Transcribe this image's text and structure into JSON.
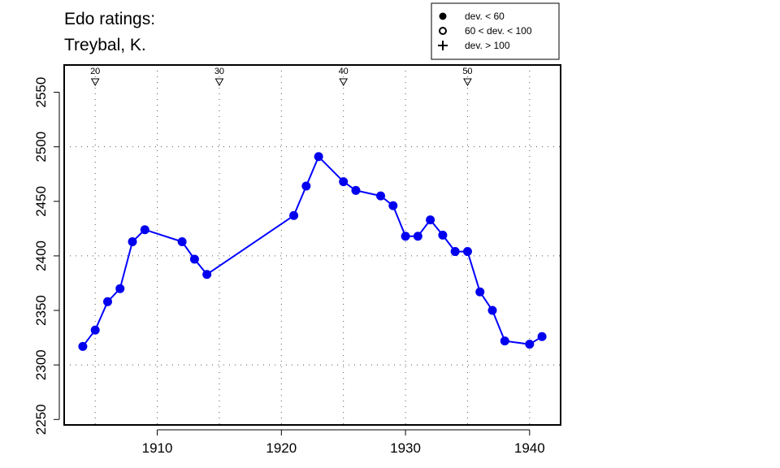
{
  "chart_data": {
    "type": "line",
    "title_lines": [
      "Edo ratings:",
      "Treybal, K."
    ],
    "xlabel": "",
    "ylabel": "",
    "xlim": [
      1902.5,
      1942.5
    ],
    "ylim": [
      2245,
      2575
    ],
    "x_ticks": [
      1910,
      1920,
      1930,
      1940
    ],
    "y_ticks": [
      2250,
      2300,
      2350,
      2400,
      2450,
      2500,
      2550
    ],
    "x_grid": [
      1905,
      1910,
      1915,
      1920,
      1925,
      1930,
      1935,
      1940
    ],
    "y_grid": [
      2300,
      2400,
      2500
    ],
    "grid": true,
    "age_markers": [
      {
        "label": "20",
        "x": 1905
      },
      {
        "label": "30",
        "x": 1915
      },
      {
        "label": "40",
        "x": 1925
      },
      {
        "label": "50",
        "x": 1935
      }
    ],
    "legend": {
      "position": "top-right",
      "entries": [
        {
          "symbol": "filled-circle",
          "label": "dev. < 60"
        },
        {
          "symbol": "open-circle",
          "label": "60 < dev. < 100"
        },
        {
          "symbol": "plus",
          "label": "dev. > 100"
        }
      ]
    },
    "line_color": "#0000ff",
    "point_color": "#0000ee",
    "series": [
      {
        "points": [
          {
            "x": 1904,
            "y": 2317
          },
          {
            "x": 1905,
            "y": 2332
          },
          {
            "x": 1906,
            "y": 2358
          },
          {
            "x": 1907,
            "y": 2370
          },
          {
            "x": 1908,
            "y": 2413
          },
          {
            "x": 1909,
            "y": 2424
          },
          {
            "x": 1912,
            "y": 2413
          },
          {
            "x": 1913,
            "y": 2397
          },
          {
            "x": 1914,
            "y": 2383
          },
          {
            "x": 1921,
            "y": 2437
          },
          {
            "x": 1922,
            "y": 2464
          },
          {
            "x": 1923,
            "y": 2491
          },
          {
            "x": 1925,
            "y": 2468
          },
          {
            "x": 1926,
            "y": 2460
          },
          {
            "x": 1928,
            "y": 2455
          },
          {
            "x": 1929,
            "y": 2446
          },
          {
            "x": 1930,
            "y": 2418
          },
          {
            "x": 1931,
            "y": 2418
          },
          {
            "x": 1932,
            "y": 2433
          },
          {
            "x": 1933,
            "y": 2419
          },
          {
            "x": 1934,
            "y": 2404
          },
          {
            "x": 1935,
            "y": 2404
          },
          {
            "x": 1936,
            "y": 2367
          },
          {
            "x": 1937,
            "y": 2350
          },
          {
            "x": 1938,
            "y": 2322
          },
          {
            "x": 1940,
            "y": 2319
          },
          {
            "x": 1941,
            "y": 2326
          }
        ]
      }
    ]
  }
}
